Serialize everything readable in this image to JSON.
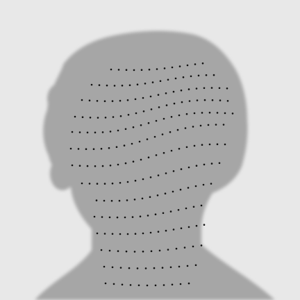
{
  "colors": {
    "background": "#e8e8e8",
    "silhouette": "#a6a6a6",
    "dots": "#111111"
  },
  "icon": "head-silhouette-with-dotted-contour-lines"
}
